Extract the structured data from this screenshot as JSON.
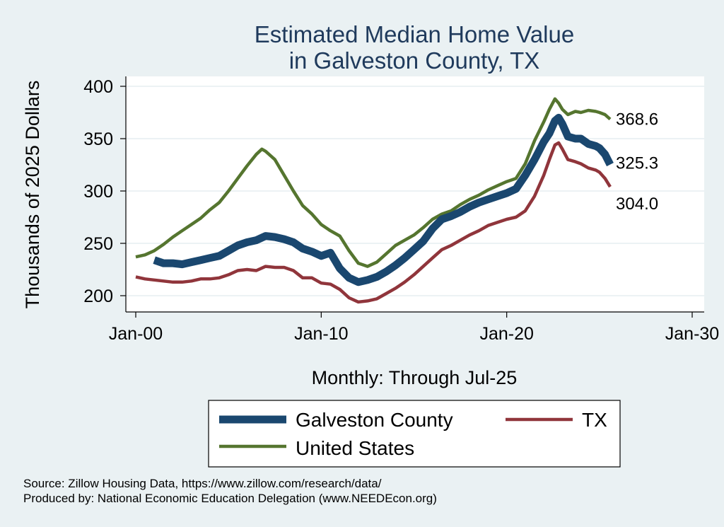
{
  "chart_data": {
    "type": "line",
    "title": [
      "Estimated Median Home Value",
      "in Galveston County, TX"
    ],
    "ylabel": "Thousands of 2025 Dollars",
    "xlabel": "Monthly: Through Jul-25",
    "xlim": [
      2000,
      2030
    ],
    "ylim": [
      193,
      412
    ],
    "y_ticks": [
      200,
      250,
      300,
      350,
      400
    ],
    "x_ticks": [
      {
        "value": 2000,
        "label": "Jan-00"
      },
      {
        "value": 2010,
        "label": "Jan-10"
      },
      {
        "value": 2020,
        "label": "Jan-20"
      },
      {
        "value": 2030,
        "label": "Jan-30"
      }
    ],
    "grid": "horizontal",
    "legend_position": "bottom",
    "series": [
      {
        "name": "Galveston County",
        "color": "#1a476f",
        "end_label": "325.3",
        "points": [
          [
            2001.0,
            234
          ],
          [
            2001.5,
            231
          ],
          [
            2002.0,
            231
          ],
          [
            2002.5,
            230
          ],
          [
            2003.0,
            232
          ],
          [
            2003.5,
            234
          ],
          [
            2004.0,
            236
          ],
          [
            2004.5,
            238
          ],
          [
            2005.0,
            243
          ],
          [
            2005.5,
            248
          ],
          [
            2006.0,
            251
          ],
          [
            2006.5,
            253
          ],
          [
            2007.0,
            257
          ],
          [
            2007.5,
            256
          ],
          [
            2008.0,
            254
          ],
          [
            2008.5,
            251
          ],
          [
            2009.0,
            245
          ],
          [
            2009.5,
            242
          ],
          [
            2010.0,
            238
          ],
          [
            2010.5,
            241
          ],
          [
            2011.0,
            226
          ],
          [
            2011.5,
            217
          ],
          [
            2012.0,
            213
          ],
          [
            2012.5,
            215
          ],
          [
            2013.0,
            218
          ],
          [
            2013.5,
            223
          ],
          [
            2014.0,
            229
          ],
          [
            2014.5,
            236
          ],
          [
            2015.0,
            244
          ],
          [
            2015.5,
            252
          ],
          [
            2016.0,
            264
          ],
          [
            2016.5,
            273
          ],
          [
            2017.0,
            276
          ],
          [
            2017.5,
            280
          ],
          [
            2018.0,
            285
          ],
          [
            2018.5,
            289
          ],
          [
            2019.0,
            292
          ],
          [
            2019.5,
            295
          ],
          [
            2020.0,
            298
          ],
          [
            2020.5,
            302
          ],
          [
            2021.0,
            315
          ],
          [
            2021.5,
            330
          ],
          [
            2022.0,
            347
          ],
          [
            2022.3,
            355
          ],
          [
            2022.6,
            367
          ],
          [
            2022.8,
            370
          ],
          [
            2023.0,
            364
          ],
          [
            2023.3,
            352
          ],
          [
            2023.7,
            350
          ],
          [
            2024.0,
            350
          ],
          [
            2024.4,
            345
          ],
          [
            2024.8,
            343
          ],
          [
            2025.0,
            341
          ],
          [
            2025.3,
            335
          ],
          [
            2025.58,
            325.3
          ]
        ]
      },
      {
        "name": "TX",
        "color": "#90353b",
        "end_label": "304.0",
        "points": [
          [
            2000.0,
            218
          ],
          [
            2000.5,
            216
          ],
          [
            2001.0,
            215
          ],
          [
            2001.5,
            214
          ],
          [
            2002.0,
            213
          ],
          [
            2002.5,
            213
          ],
          [
            2003.0,
            214
          ],
          [
            2003.5,
            216
          ],
          [
            2004.0,
            216
          ],
          [
            2004.5,
            217
          ],
          [
            2005.0,
            220
          ],
          [
            2005.5,
            224
          ],
          [
            2006.0,
            225
          ],
          [
            2006.5,
            224
          ],
          [
            2007.0,
            228
          ],
          [
            2007.5,
            227
          ],
          [
            2008.0,
            227
          ],
          [
            2008.5,
            224
          ],
          [
            2009.0,
            217
          ],
          [
            2009.5,
            217
          ],
          [
            2010.0,
            212
          ],
          [
            2010.5,
            211
          ],
          [
            2011.0,
            206
          ],
          [
            2011.5,
            198
          ],
          [
            2012.0,
            194
          ],
          [
            2012.5,
            195
          ],
          [
            2013.0,
            197
          ],
          [
            2013.5,
            202
          ],
          [
            2014.0,
            207
          ],
          [
            2014.5,
            213
          ],
          [
            2015.0,
            220
          ],
          [
            2015.5,
            228
          ],
          [
            2016.0,
            236
          ],
          [
            2016.5,
            244
          ],
          [
            2017.0,
            248
          ],
          [
            2017.5,
            253
          ],
          [
            2018.0,
            258
          ],
          [
            2018.5,
            262
          ],
          [
            2019.0,
            267
          ],
          [
            2019.5,
            270
          ],
          [
            2020.0,
            273
          ],
          [
            2020.5,
            275
          ],
          [
            2021.0,
            281
          ],
          [
            2021.5,
            295
          ],
          [
            2022.0,
            315
          ],
          [
            2022.3,
            330
          ],
          [
            2022.6,
            344
          ],
          [
            2022.8,
            346
          ],
          [
            2023.0,
            340
          ],
          [
            2023.3,
            330
          ],
          [
            2023.7,
            328
          ],
          [
            2024.0,
            326
          ],
          [
            2024.4,
            322
          ],
          [
            2024.8,
            320
          ],
          [
            2025.0,
            318
          ],
          [
            2025.3,
            312
          ],
          [
            2025.58,
            304.0
          ]
        ]
      },
      {
        "name": "United States",
        "color": "#55752f",
        "end_label": "368.6",
        "points": [
          [
            2000.0,
            237
          ],
          [
            2000.5,
            239
          ],
          [
            2001.0,
            243
          ],
          [
            2001.5,
            249
          ],
          [
            2002.0,
            256
          ],
          [
            2002.5,
            262
          ],
          [
            2003.0,
            268
          ],
          [
            2003.5,
            274
          ],
          [
            2004.0,
            282
          ],
          [
            2004.5,
            289
          ],
          [
            2005.0,
            300
          ],
          [
            2005.5,
            312
          ],
          [
            2006.0,
            324
          ],
          [
            2006.5,
            335
          ],
          [
            2006.8,
            340
          ],
          [
            2007.0,
            338
          ],
          [
            2007.5,
            330
          ],
          [
            2008.0,
            315
          ],
          [
            2008.5,
            300
          ],
          [
            2009.0,
            286
          ],
          [
            2009.5,
            278
          ],
          [
            2010.0,
            268
          ],
          [
            2010.5,
            262
          ],
          [
            2011.0,
            257
          ],
          [
            2011.5,
            243
          ],
          [
            2012.0,
            231
          ],
          [
            2012.5,
            228
          ],
          [
            2013.0,
            232
          ],
          [
            2013.5,
            240
          ],
          [
            2014.0,
            248
          ],
          [
            2014.5,
            253
          ],
          [
            2015.0,
            258
          ],
          [
            2015.5,
            265
          ],
          [
            2016.0,
            273
          ],
          [
            2016.5,
            278
          ],
          [
            2017.0,
            281
          ],
          [
            2017.5,
            287
          ],
          [
            2018.0,
            292
          ],
          [
            2018.5,
            296
          ],
          [
            2019.0,
            301
          ],
          [
            2019.5,
            305
          ],
          [
            2020.0,
            309
          ],
          [
            2020.5,
            312
          ],
          [
            2021.0,
            326
          ],
          [
            2021.5,
            348
          ],
          [
            2022.0,
            366
          ],
          [
            2022.3,
            378
          ],
          [
            2022.6,
            388
          ],
          [
            2022.8,
            384
          ],
          [
            2023.0,
            378
          ],
          [
            2023.3,
            373
          ],
          [
            2023.7,
            376
          ],
          [
            2024.0,
            375
          ],
          [
            2024.4,
            377
          ],
          [
            2024.8,
            376
          ],
          [
            2025.0,
            375
          ],
          [
            2025.3,
            373
          ],
          [
            2025.58,
            368.6
          ]
        ]
      }
    ],
    "source_lines": [
      "Source: Zillow Housing Data, https://www.zillow.com/research/data/",
      "Produced by: National Economic Education Delegation (www.NEEDEcon.org)"
    ]
  }
}
